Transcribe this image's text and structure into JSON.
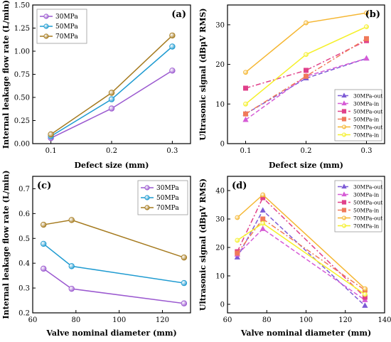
{
  "chart_data": [
    {
      "id": "a",
      "type": "line",
      "panel_label": "(a)",
      "xlabel": "Defect size (mm)",
      "ylabel": "Internal leakage flow rate (L/min)",
      "x": [
        0.1,
        0.2,
        0.3
      ],
      "xticks": [
        "0.1",
        "0.2",
        "0.3"
      ],
      "xlim": [
        0.07,
        0.33
      ],
      "yticks": [
        "0.00",
        "0.25",
        "0.50",
        "0.75",
        "1.00",
        "1.25",
        "1.50"
      ],
      "ylim": [
        0,
        1.5
      ],
      "legend_position": "top-left",
      "series": [
        {
          "name": "30MPa",
          "color": "#9b59d0",
          "marker": "circle",
          "dash": "solid",
          "values": [
            0.06,
            0.38,
            0.79
          ]
        },
        {
          "name": "50MPa",
          "color": "#1f9bd1",
          "marker": "circle",
          "dash": "solid",
          "values": [
            0.08,
            0.48,
            1.05
          ]
        },
        {
          "name": "70MPa",
          "color": "#a57a1e",
          "marker": "circle",
          "dash": "solid",
          "values": [
            0.1,
            0.55,
            1.17
          ]
        }
      ]
    },
    {
      "id": "b",
      "type": "line",
      "panel_label": "(b)",
      "xlabel": "Defect size (mm)",
      "ylabel": "Ultrasonic signal (dBμV RMS)",
      "x": [
        0.1,
        0.2,
        0.3
      ],
      "xticks": [
        "0.1",
        "0.2",
        "0.3"
      ],
      "xlim": [
        0.07,
        0.33
      ],
      "yticks": [
        "0",
        "10",
        "20",
        "30"
      ],
      "ylim": [
        0,
        35
      ],
      "legend_position": "bottom-right",
      "series": [
        {
          "name": "30MPa-out",
          "color": "#7d5bd6",
          "marker": "triangle",
          "dash": "dash",
          "values": [
            7.5,
            16.5,
            21.5
          ]
        },
        {
          "name": "30MPa-in",
          "color": "#d65bd6",
          "marker": "triangle",
          "dash": "dash",
          "values": [
            6.0,
            17.0,
            21.5
          ]
        },
        {
          "name": "50MPa-out",
          "color": "#e0408a",
          "marker": "square",
          "dash": "dashdot",
          "values": [
            14.0,
            18.5,
            26.0
          ]
        },
        {
          "name": "50MPa-in",
          "color": "#f07a5a",
          "marker": "square",
          "dash": "dashdot",
          "values": [
            7.5,
            17.0,
            26.5
          ]
        },
        {
          "name": "70MPa-out",
          "color": "#f5b631",
          "marker": "circle",
          "dash": "solid",
          "values": [
            18.0,
            30.5,
            33.0
          ]
        },
        {
          "name": "70MPa-in",
          "color": "#f5f02a",
          "marker": "circle",
          "dash": "solid",
          "values": [
            10.0,
            22.5,
            29.5
          ]
        }
      ]
    },
    {
      "id": "c",
      "type": "line",
      "panel_label": "(c)",
      "xlabel": "Valve nominal diameter (mm)",
      "ylabel": "Internal leakage flow rate (L/min)",
      "x": [
        65,
        78,
        130
      ],
      "xticks": [
        "60",
        "80",
        "100",
        "120"
      ],
      "xtick_values": [
        60,
        80,
        100,
        120
      ],
      "xlim": [
        60,
        133
      ],
      "yticks": [
        "0.2",
        "0.3",
        "0.4",
        "0.5",
        "0.6",
        "0.7"
      ],
      "ylim": [
        0.2,
        0.75
      ],
      "legend_position": "top-right",
      "series": [
        {
          "name": "30MPa",
          "color": "#9b59d0",
          "marker": "circle",
          "dash": "solid",
          "values": [
            0.378,
            0.297,
            0.238
          ]
        },
        {
          "name": "50MPa",
          "color": "#1f9bd1",
          "marker": "circle",
          "dash": "solid",
          "values": [
            0.478,
            0.388,
            0.32
          ]
        },
        {
          "name": "70MPa",
          "color": "#a57a1e",
          "marker": "circle",
          "dash": "solid",
          "values": [
            0.555,
            0.574,
            0.423
          ]
        }
      ]
    },
    {
      "id": "d",
      "type": "line",
      "panel_label": "(d)",
      "xlabel": "Valve nominal diameter (mm)",
      "ylabel": "Ultrasonic signal (dBμV RMS)",
      "x": [
        65,
        78,
        130
      ],
      "xticks": [
        "60",
        "80",
        "100",
        "120",
        "140"
      ],
      "xtick_values": [
        60,
        80,
        100,
        120,
        140
      ],
      "xlim": [
        60,
        140
      ],
      "yticks": [
        "0",
        "10",
        "20",
        "30",
        "40"
      ],
      "ylim": [
        -3,
        45
      ],
      "legend_position": "top-right",
      "series": [
        {
          "name": "30MPa-out",
          "color": "#7d5bd6",
          "marker": "triangle",
          "dash": "dash",
          "values": [
            16.5,
            33.0,
            -0.5
          ]
        },
        {
          "name": "30MPa-in",
          "color": "#d65bd6",
          "marker": "triangle",
          "dash": "dash",
          "values": [
            17.5,
            26.5,
            1.5
          ]
        },
        {
          "name": "50MPa-out",
          "color": "#e0408a",
          "marker": "square",
          "dash": "dashdot",
          "values": [
            18.5,
            37.5,
            2.5
          ]
        },
        {
          "name": "50MPa-in",
          "color": "#f07a5a",
          "marker": "square",
          "dash": "dashdot",
          "values": [
            18.0,
            30.0,
            5.0
          ]
        },
        {
          "name": "70MPa-out",
          "color": "#f5b631",
          "marker": "circle",
          "dash": "solid",
          "values": [
            30.5,
            38.5,
            5.5
          ]
        },
        {
          "name": "70MPa-in",
          "color": "#f5f02a",
          "marker": "circle",
          "dash": "solid",
          "values": [
            22.5,
            28.5,
            3.5
          ]
        }
      ]
    }
  ]
}
